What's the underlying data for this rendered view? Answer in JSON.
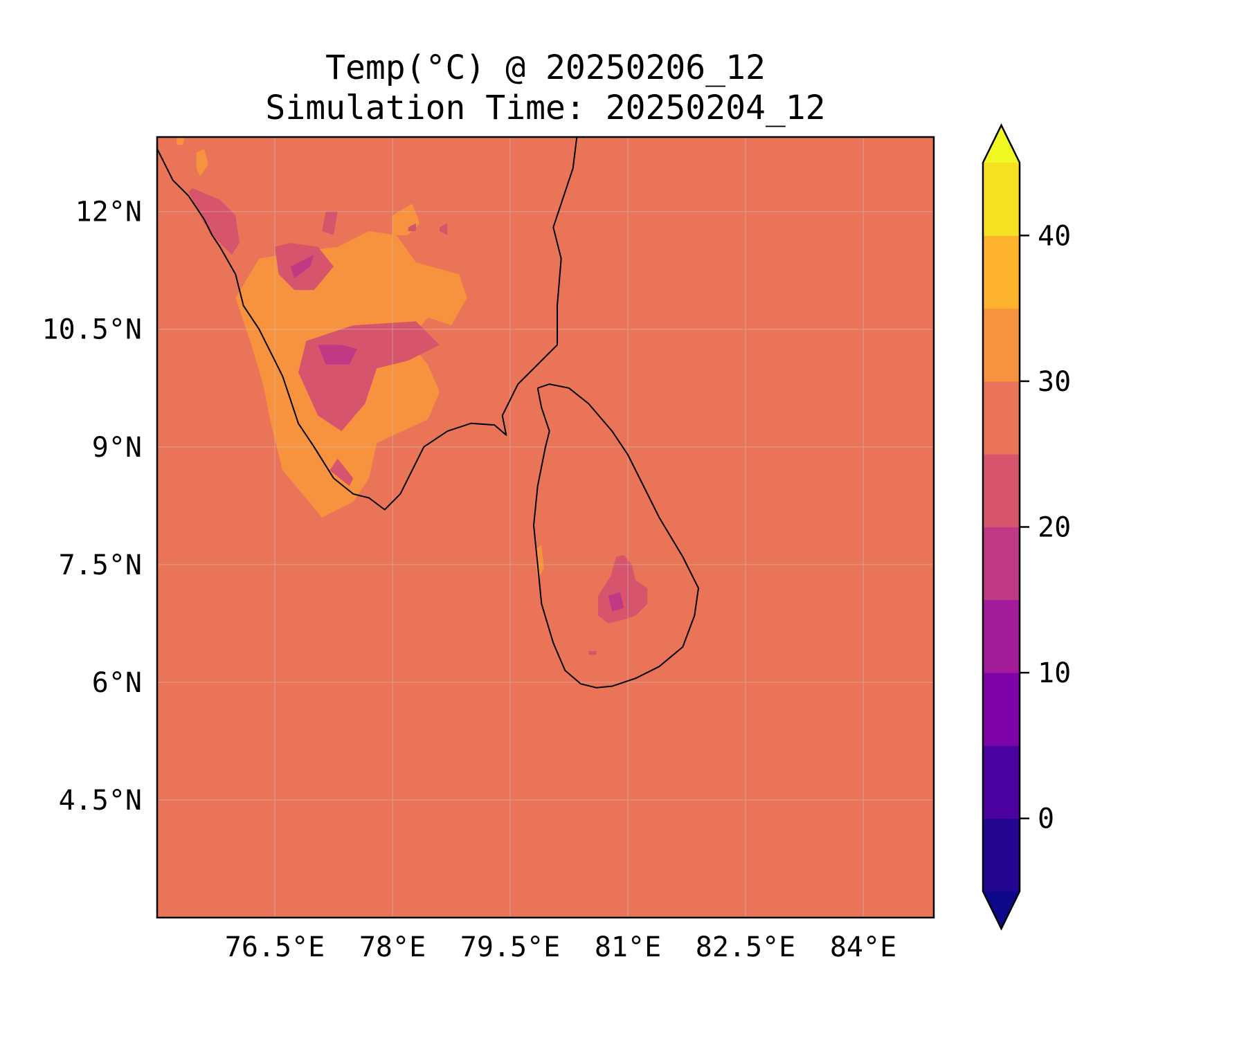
{
  "title": {
    "line1": "Temp(°C) @ 20250206_12",
    "line2": "Simulation Time: 20250204_12"
  },
  "map": {
    "lon_range": [
      75.0,
      84.9
    ],
    "lat_range": [
      3.0,
      12.95
    ],
    "x_ticks": [
      {
        "value": 76.5,
        "label": "76.5°E"
      },
      {
        "value": 78.0,
        "label": "78°E"
      },
      {
        "value": 79.5,
        "label": "79.5°E"
      },
      {
        "value": 81.0,
        "label": "81°E"
      },
      {
        "value": 82.5,
        "label": "82.5°E"
      },
      {
        "value": 84.0,
        "label": "84°E"
      }
    ],
    "y_ticks": [
      {
        "value": 12.0,
        "label": "12°N"
      },
      {
        "value": 10.5,
        "label": "10.5°N"
      },
      {
        "value": 9.0,
        "label": "9°N"
      },
      {
        "value": 7.5,
        "label": "7.5°N"
      },
      {
        "value": 6.0,
        "label": "6°N"
      },
      {
        "value": 4.5,
        "label": "4.5°N"
      }
    ],
    "background_level_color": "#ea7458",
    "regions": [
      {
        "level": "30-35",
        "color": "#f7933e",
        "points": [
          [
            76.0,
            10.9
          ],
          [
            76.3,
            11.4
          ],
          [
            76.6,
            11.45
          ],
          [
            76.9,
            11.5
          ],
          [
            77.3,
            11.55
          ],
          [
            77.7,
            11.75
          ],
          [
            78.05,
            11.7
          ],
          [
            78.3,
            11.35
          ],
          [
            78.85,
            11.2
          ],
          [
            78.95,
            10.9
          ],
          [
            78.75,
            10.55
          ],
          [
            78.45,
            10.65
          ],
          [
            78.2,
            10.35
          ],
          [
            78.45,
            10.05
          ],
          [
            78.6,
            9.7
          ],
          [
            78.45,
            9.35
          ],
          [
            77.8,
            9.05
          ],
          [
            77.7,
            8.6
          ],
          [
            77.5,
            8.3
          ],
          [
            77.1,
            8.1
          ],
          [
            76.6,
            8.7
          ],
          [
            76.45,
            9.3
          ],
          [
            76.35,
            9.8
          ],
          [
            76.2,
            10.3
          ]
        ]
      },
      {
        "level": "30-35",
        "color": "#f7933e",
        "points": [
          [
            78.0,
            11.95
          ],
          [
            78.25,
            12.1
          ],
          [
            78.35,
            11.85
          ],
          [
            78.2,
            11.7
          ],
          [
            78.0,
            11.7
          ]
        ]
      },
      {
        "level": "30-35",
        "color": "#f7933e",
        "points": [
          [
            75.5,
            12.75
          ],
          [
            75.6,
            12.8
          ],
          [
            75.65,
            12.6
          ],
          [
            75.55,
            12.45
          ],
          [
            75.5,
            12.55
          ]
        ]
      },
      {
        "level": "30-35",
        "color": "#f7933e",
        "points": [
          [
            75.25,
            12.95
          ],
          [
            75.35,
            12.95
          ],
          [
            75.33,
            12.85
          ],
          [
            75.25,
            12.85
          ]
        ]
      },
      {
        "level": "30-35",
        "color": "#f7933e",
        "points": [
          [
            79.83,
            7.7
          ],
          [
            79.9,
            7.75
          ],
          [
            79.93,
            7.45
          ],
          [
            79.85,
            7.3
          ],
          [
            79.83,
            7.5
          ]
        ]
      },
      {
        "level": "20-25",
        "color": "#d6556d",
        "points": [
          [
            76.7,
            11.6
          ],
          [
            77.05,
            11.55
          ],
          [
            77.25,
            11.3
          ],
          [
            77.0,
            11.0
          ],
          [
            76.75,
            11.0
          ],
          [
            76.55,
            11.2
          ],
          [
            76.5,
            11.55
          ]
        ]
      },
      {
        "level": "20-25",
        "color": "#d6556d",
        "points": [
          [
            76.9,
            10.35
          ],
          [
            77.5,
            10.55
          ],
          [
            78.3,
            10.6
          ],
          [
            78.6,
            10.3
          ],
          [
            78.2,
            10.1
          ],
          [
            77.8,
            10.0
          ],
          [
            77.65,
            9.55
          ],
          [
            77.35,
            9.2
          ],
          [
            77.05,
            9.4
          ],
          [
            76.8,
            9.95
          ]
        ]
      },
      {
        "level": "20-25",
        "color": "#d6556d",
        "points": [
          [
            75.45,
            12.3
          ],
          [
            75.8,
            12.15
          ],
          [
            76.0,
            11.95
          ],
          [
            76.05,
            11.6
          ],
          [
            75.95,
            11.45
          ],
          [
            75.75,
            11.65
          ],
          [
            75.6,
            11.85
          ],
          [
            75.4,
            12.25
          ]
        ]
      },
      {
        "level": "20-25",
        "color": "#d6556d",
        "points": [
          [
            77.15,
            12.0
          ],
          [
            77.3,
            12.0
          ],
          [
            77.25,
            11.7
          ],
          [
            77.1,
            11.75
          ]
        ]
      },
      {
        "level": "20-25",
        "color": "#d6556d",
        "points": [
          [
            77.3,
            8.85
          ],
          [
            77.5,
            8.6
          ],
          [
            77.45,
            8.5
          ],
          [
            77.2,
            8.7
          ]
        ]
      },
      {
        "level": "20-25",
        "color": "#d6556d",
        "points": [
          [
            78.2,
            11.8
          ],
          [
            78.3,
            11.85
          ],
          [
            78.3,
            11.75
          ],
          [
            78.2,
            11.75
          ]
        ]
      },
      {
        "level": "20-25",
        "color": "#d6556d",
        "points": [
          [
            78.6,
            11.8
          ],
          [
            78.7,
            11.85
          ],
          [
            78.7,
            11.7
          ],
          [
            78.6,
            11.75
          ]
        ]
      },
      {
        "level": "20-25",
        "color": "#d6556d",
        "points": [
          [
            80.62,
            7.1
          ],
          [
            80.78,
            7.35
          ],
          [
            80.85,
            7.6
          ],
          [
            80.95,
            7.62
          ],
          [
            81.05,
            7.5
          ],
          [
            81.1,
            7.3
          ],
          [
            81.25,
            7.2
          ],
          [
            81.25,
            7.0
          ],
          [
            81.1,
            6.85
          ],
          [
            80.95,
            6.8
          ],
          [
            80.75,
            6.75
          ],
          [
            80.62,
            6.85
          ]
        ]
      },
      {
        "level": "20-25",
        "color": "#d6556d",
        "points": [
          [
            80.5,
            6.4
          ],
          [
            80.6,
            6.4
          ],
          [
            80.6,
            6.35
          ],
          [
            80.5,
            6.35
          ]
        ]
      },
      {
        "level": "15-20",
        "color": "#bf3984",
        "points": [
          [
            76.7,
            11.3
          ],
          [
            77.0,
            11.45
          ],
          [
            76.95,
            11.3
          ],
          [
            76.75,
            11.15
          ]
        ]
      },
      {
        "level": "15-20",
        "color": "#bf3984",
        "points": [
          [
            77.05,
            10.3
          ],
          [
            77.35,
            10.3
          ],
          [
            77.55,
            10.25
          ],
          [
            77.45,
            10.05
          ],
          [
            77.15,
            10.05
          ]
        ]
      },
      {
        "level": "15-20",
        "color": "#bf3984",
        "points": [
          [
            80.75,
            7.1
          ],
          [
            80.9,
            7.15
          ],
          [
            80.95,
            6.95
          ],
          [
            80.8,
            6.9
          ]
        ]
      }
    ],
    "coastlines": [
      [
        [
          75.0,
          12.8
        ],
        [
          75.2,
          12.4
        ],
        [
          75.4,
          12.2
        ],
        [
          75.6,
          11.9
        ],
        [
          75.7,
          11.7
        ],
        [
          75.8,
          11.55
        ],
        [
          76.0,
          11.2
        ],
        [
          76.1,
          10.8
        ],
        [
          76.3,
          10.5
        ],
        [
          76.5,
          10.1
        ],
        [
          76.6,
          9.9
        ],
        [
          76.7,
          9.6
        ],
        [
          76.8,
          9.3
        ],
        [
          77.0,
          9.0
        ],
        [
          77.25,
          8.6
        ],
        [
          77.5,
          8.4
        ],
        [
          77.7,
          8.35
        ],
        [
          77.9,
          8.2
        ],
        [
          78.1,
          8.4
        ],
        [
          78.25,
          8.7
        ],
        [
          78.4,
          9.0
        ],
        [
          78.7,
          9.2
        ],
        [
          79.0,
          9.3
        ],
        [
          79.3,
          9.28
        ],
        [
          79.45,
          9.15
        ],
        [
          79.4,
          9.4
        ],
        [
          79.6,
          9.8
        ],
        [
          79.8,
          10.0
        ],
        [
          80.1,
          10.3
        ],
        [
          80.1,
          10.8
        ],
        [
          80.15,
          11.4
        ],
        [
          80.05,
          11.8
        ],
        [
          80.2,
          12.25
        ],
        [
          80.3,
          12.55
        ],
        [
          80.35,
          12.95
        ]
      ],
      [
        [
          79.85,
          9.75
        ],
        [
          80.0,
          9.8
        ],
        [
          80.25,
          9.75
        ],
        [
          80.5,
          9.55
        ],
        [
          80.8,
          9.2
        ],
        [
          81.0,
          8.9
        ],
        [
          81.2,
          8.5
        ],
        [
          81.4,
          8.1
        ],
        [
          81.7,
          7.6
        ],
        [
          81.9,
          7.2
        ],
        [
          81.85,
          6.85
        ],
        [
          81.7,
          6.45
        ],
        [
          81.4,
          6.2
        ],
        [
          81.1,
          6.05
        ],
        [
          80.8,
          5.95
        ],
        [
          80.6,
          5.93
        ],
        [
          80.4,
          5.98
        ],
        [
          80.2,
          6.15
        ],
        [
          80.05,
          6.5
        ],
        [
          79.9,
          7.0
        ],
        [
          79.85,
          7.5
        ],
        [
          79.8,
          8.0
        ],
        [
          79.85,
          8.5
        ],
        [
          79.95,
          9.0
        ],
        [
          80.0,
          9.2
        ],
        [
          79.9,
          9.5
        ],
        [
          79.85,
          9.75
        ]
      ]
    ]
  },
  "colorbar": {
    "vmin": -5,
    "vmax": 45,
    "ticks": [
      {
        "value": 0,
        "label": "0"
      },
      {
        "value": 10,
        "label": "10"
      },
      {
        "value": 20,
        "label": "20"
      },
      {
        "value": 30,
        "label": "30"
      },
      {
        "value": 40,
        "label": "40"
      }
    ],
    "bands": [
      {
        "from": -5,
        "to": 0,
        "color": "#240690"
      },
      {
        "from": 0,
        "to": 5,
        "color": "#4c02a1"
      },
      {
        "from": 5,
        "to": 10,
        "color": "#7e03a8"
      },
      {
        "from": 10,
        "to": 15,
        "color": "#a11b9b"
      },
      {
        "from": 15,
        "to": 20,
        "color": "#bf3984"
      },
      {
        "from": 20,
        "to": 25,
        "color": "#d6556d"
      },
      {
        "from": 25,
        "to": 30,
        "color": "#ea7458"
      },
      {
        "from": 30,
        "to": 35,
        "color": "#f7933e"
      },
      {
        "from": 35,
        "to": 40,
        "color": "#fdb22e"
      },
      {
        "from": 40,
        "to": 45,
        "color": "#f4e222"
      }
    ],
    "under_color": "#0d0887",
    "over_color": "#f0f921"
  }
}
